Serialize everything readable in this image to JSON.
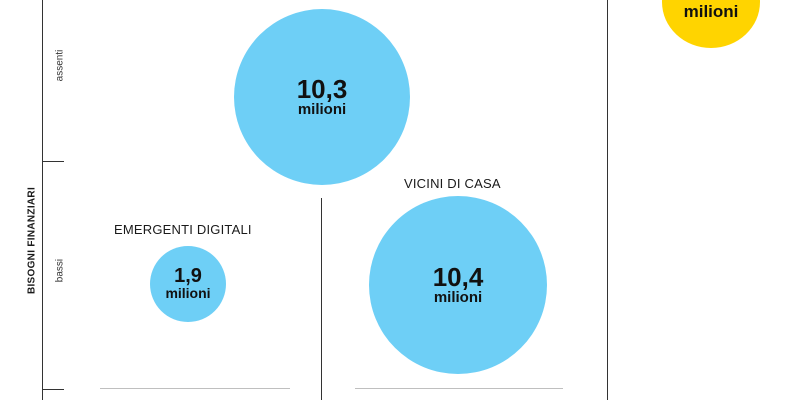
{
  "chart_data": {
    "type": "bubble",
    "ylabel": "BISOGNI FINANZIARI",
    "y_levels": [
      "assenti",
      "bassi"
    ],
    "bubbles": [
      {
        "segment": "",
        "value": "10,3",
        "unit": "milioni",
        "level": "assenti",
        "color": "#6ecff6"
      },
      {
        "segment": "EMERGENTI DIGITALI",
        "value": "1,9",
        "unit": "milioni",
        "level": "bassi",
        "color": "#6ecff6"
      },
      {
        "segment": "VICINI DI CASA",
        "value": "10,4",
        "unit": "milioni",
        "level": "bassi",
        "color": "#6ecff6"
      },
      {
        "segment": "",
        "value": "",
        "unit": "milioni",
        "level": "",
        "color": "#ffd400"
      }
    ]
  }
}
